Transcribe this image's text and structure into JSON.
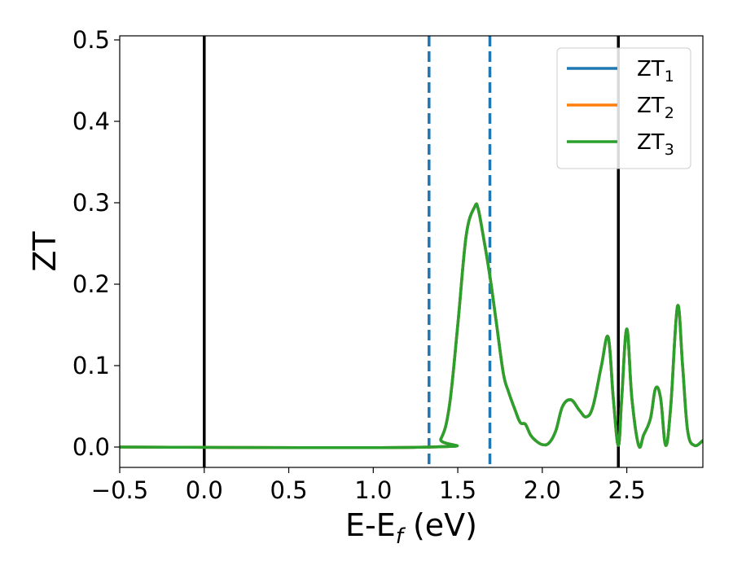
{
  "chart_data": {
    "type": "line",
    "xlabel": "E-E",
    "xlabel_sub": "f",
    "xlabel_unit": " (eV)",
    "ylabel": "ZT",
    "xlim": [
      -0.5,
      2.95
    ],
    "ylim": [
      -0.025,
      0.505
    ],
    "xticks": [
      -0.5,
      0.0,
      0.5,
      1.0,
      1.5,
      2.0,
      2.5
    ],
    "xtick_labels": [
      "−0.5",
      "0.0",
      "0.5",
      "1.0",
      "1.5",
      "2.0",
      "2.5"
    ],
    "yticks": [
      0.0,
      0.1,
      0.2,
      0.3,
      0.4,
      0.5
    ],
    "ytick_labels": [
      "0.0",
      "0.1",
      "0.2",
      "0.3",
      "0.4",
      "0.5"
    ],
    "grid": false,
    "legend_position": "top-right",
    "vertical_lines": [
      {
        "x": 0.0,
        "style": "solid",
        "color": "#000000"
      },
      {
        "x": 2.45,
        "style": "solid",
        "color": "#000000"
      },
      {
        "x": 1.33,
        "style": "dashed",
        "color": "#1f77b4"
      },
      {
        "x": 1.69,
        "style": "dashed",
        "color": "#1f77b4"
      }
    ],
    "series": [
      {
        "name": "ZT",
        "name_sub": "1",
        "color": "#1f77b4",
        "x": [
          -0.5,
          1.33,
          1.4,
          1.45,
          1.5,
          1.55,
          1.6,
          1.62,
          1.65,
          1.69,
          1.73,
          1.77,
          1.8,
          1.84,
          1.87,
          1.9,
          1.93,
          1.96,
          2.0,
          2.04,
          2.08,
          2.12,
          2.17,
          2.22,
          2.26,
          2.3,
          2.35,
          2.39,
          2.42,
          2.45,
          2.47,
          2.5,
          2.53,
          2.57,
          2.6,
          2.64,
          2.67,
          2.7,
          2.73,
          2.76,
          2.8,
          2.83,
          2.86,
          2.9,
          2.95
        ],
        "y": [
          0.0,
          0.0,
          0.01,
          0.05,
          0.15,
          0.26,
          0.295,
          0.293,
          0.26,
          0.21,
          0.15,
          0.09,
          0.068,
          0.045,
          0.03,
          0.028,
          0.015,
          0.008,
          0.003,
          0.005,
          0.02,
          0.05,
          0.058,
          0.045,
          0.037,
          0.05,
          0.1,
          0.135,
          0.06,
          0.002,
          0.06,
          0.145,
          0.06,
          0.002,
          0.015,
          0.035,
          0.072,
          0.06,
          0.002,
          0.05,
          0.173,
          0.1,
          0.02,
          0.002,
          0.008
        ]
      },
      {
        "name": "ZT",
        "name_sub": "2",
        "color": "#ff7f0e",
        "x": [
          -0.5,
          1.33,
          1.4,
          1.45,
          1.5,
          1.55,
          1.6,
          1.62,
          1.65,
          1.69,
          1.73,
          1.77,
          1.8,
          1.84,
          1.87,
          1.9,
          1.93,
          1.96,
          2.0,
          2.04,
          2.08,
          2.12,
          2.17,
          2.22,
          2.26,
          2.3,
          2.35,
          2.39,
          2.42,
          2.45,
          2.47,
          2.5,
          2.53,
          2.57,
          2.6,
          2.64,
          2.67,
          2.7,
          2.73,
          2.76,
          2.8,
          2.83,
          2.86,
          2.9,
          2.95
        ],
        "y": [
          0.0,
          0.0,
          0.01,
          0.05,
          0.15,
          0.26,
          0.295,
          0.293,
          0.26,
          0.21,
          0.15,
          0.09,
          0.068,
          0.045,
          0.03,
          0.028,
          0.015,
          0.008,
          0.003,
          0.005,
          0.02,
          0.05,
          0.058,
          0.045,
          0.037,
          0.05,
          0.1,
          0.135,
          0.06,
          0.002,
          0.06,
          0.145,
          0.06,
          0.002,
          0.015,
          0.035,
          0.072,
          0.06,
          0.002,
          0.05,
          0.173,
          0.1,
          0.02,
          0.002,
          0.008
        ]
      },
      {
        "name": "ZT",
        "name_sub": "3",
        "color": "#2ca02c",
        "x": [
          -0.5,
          1.33,
          1.4,
          1.45,
          1.5,
          1.55,
          1.6,
          1.62,
          1.65,
          1.69,
          1.73,
          1.77,
          1.8,
          1.84,
          1.87,
          1.9,
          1.93,
          1.96,
          2.0,
          2.04,
          2.08,
          2.12,
          2.17,
          2.22,
          2.26,
          2.3,
          2.35,
          2.39,
          2.42,
          2.45,
          2.47,
          2.5,
          2.53,
          2.57,
          2.6,
          2.64,
          2.67,
          2.7,
          2.73,
          2.76,
          2.8,
          2.83,
          2.86,
          2.9,
          2.95
        ],
        "y": [
          0.0,
          0.0,
          0.01,
          0.05,
          0.15,
          0.26,
          0.295,
          0.293,
          0.26,
          0.21,
          0.15,
          0.09,
          0.068,
          0.045,
          0.03,
          0.028,
          0.015,
          0.008,
          0.003,
          0.005,
          0.02,
          0.05,
          0.058,
          0.045,
          0.037,
          0.05,
          0.1,
          0.135,
          0.06,
          0.002,
          0.06,
          0.145,
          0.06,
          0.002,
          0.015,
          0.035,
          0.072,
          0.06,
          0.002,
          0.05,
          0.173,
          0.1,
          0.02,
          0.002,
          0.008
        ]
      }
    ]
  }
}
